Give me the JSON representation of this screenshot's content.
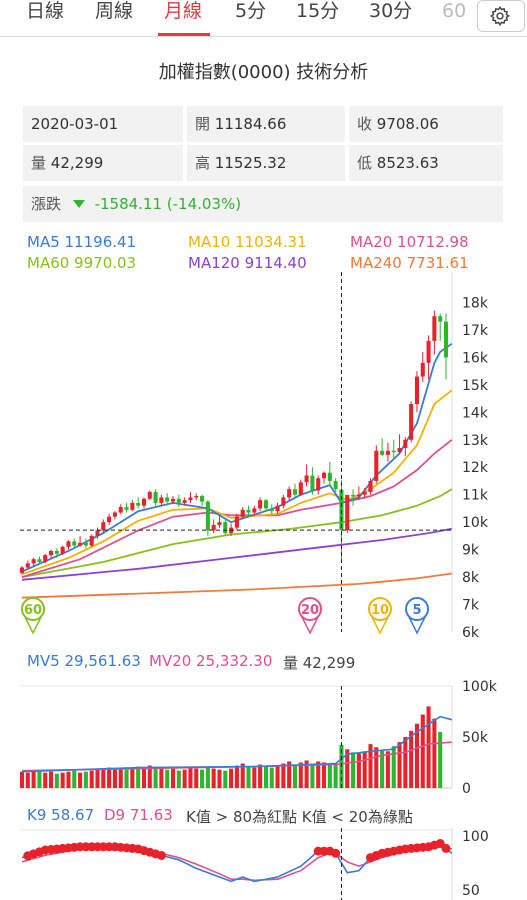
{
  "tabs": [
    {
      "label": "日線",
      "active": false
    },
    {
      "label": "周線",
      "active": false
    },
    {
      "label": "月線",
      "active": true
    },
    {
      "label": "5分",
      "active": false
    },
    {
      "label": "15分",
      "active": false
    },
    {
      "label": "30分",
      "active": false
    },
    {
      "label": "60",
      "active": false
    }
  ],
  "settings_icon": "gear-icon",
  "title": "加權指數(0000) 技術分析",
  "info": {
    "date": "2020-03-01",
    "open_label": "開",
    "open": "11184.66",
    "close_label": "收",
    "close": "9708.06",
    "volume_label": "量",
    "volume": "42,299",
    "high_label": "高",
    "high": "11525.32",
    "low_label": "低",
    "low": "8523.63",
    "change_label": "漲跌",
    "change": "-1584.11 (-14.03%)",
    "change_icon": "triangle-down-icon",
    "change_color": "#2db52d"
  },
  "ma_legend": {
    "ma5": "MA5 11196.41",
    "ma10": "MA10 11034.31",
    "ma20": "MA20 10712.98",
    "ma60": "MA60 9970.03",
    "ma120": "MA120 9114.40",
    "ma240": "MA240 7731.61"
  },
  "colors": {
    "ma5": "#3a7bd5",
    "ma10": "#f0b400",
    "ma20": "#e0508c",
    "ma60": "#86c11a",
    "ma120": "#8a42d6",
    "ma240": "#f07a3c",
    "up": "#e8212a",
    "down": "#2db52d"
  },
  "price_axis": [
    "18k",
    "17k",
    "16k",
    "15k",
    "14k",
    "13k",
    "12k",
    "11k",
    "10k",
    "9k",
    "8k",
    "7k",
    "6k"
  ],
  "markers": [
    {
      "label": "60",
      "color": "#86c11a"
    },
    {
      "label": "20",
      "color": "#e0508c"
    },
    {
      "label": "10",
      "color": "#f0b400"
    },
    {
      "label": "5",
      "color": "#3a7bd5"
    }
  ],
  "mv_legend": {
    "mv5": "MV5 29,561.63",
    "mv20": "MV20 25,332.30",
    "vol": "量 42,299"
  },
  "volume_axis": [
    "100k",
    "50k",
    "0"
  ],
  "kd_legend": {
    "k": "K9 58.67",
    "d": "D9 71.63",
    "note": "K值 > 80為紅點 K值 < 20為綠點"
  },
  "kd_axis": [
    "100",
    "50"
  ],
  "chart_data": {
    "type": "candlestick",
    "y_range_price": [
      6000,
      19000
    ],
    "candles": [
      {
        "o": 8150,
        "c": 8350,
        "h": 8400,
        "l": 8100
      },
      {
        "o": 8350,
        "c": 8500,
        "h": 8600,
        "l": 8300
      },
      {
        "o": 8500,
        "c": 8650,
        "h": 8700,
        "l": 8400
      },
      {
        "o": 8650,
        "c": 8550,
        "h": 8750,
        "l": 8450
      },
      {
        "o": 8550,
        "c": 8800,
        "h": 8850,
        "l": 8500
      },
      {
        "o": 8800,
        "c": 8950,
        "h": 9000,
        "l": 8700
      },
      {
        "o": 8950,
        "c": 8850,
        "h": 9050,
        "l": 8700
      },
      {
        "o": 8850,
        "c": 9100,
        "h": 9150,
        "l": 8800
      },
      {
        "o": 9100,
        "c": 9300,
        "h": 9350,
        "l": 9000
      },
      {
        "o": 9300,
        "c": 9150,
        "h": 9400,
        "l": 9050
      },
      {
        "o": 9150,
        "c": 9250,
        "h": 9500,
        "l": 9100
      },
      {
        "o": 9250,
        "c": 9150,
        "h": 9400,
        "l": 9050
      },
      {
        "o": 9150,
        "c": 9500,
        "h": 9550,
        "l": 9100
      },
      {
        "o": 9500,
        "c": 9700,
        "h": 9800,
        "l": 9400
      },
      {
        "o": 9700,
        "c": 10000,
        "h": 10100,
        "l": 9600
      },
      {
        "o": 10000,
        "c": 10200,
        "h": 10300,
        "l": 9900
      },
      {
        "o": 10200,
        "c": 10350,
        "h": 10400,
        "l": 10100
      },
      {
        "o": 10350,
        "c": 10550,
        "h": 10650,
        "l": 10300
      },
      {
        "o": 10550,
        "c": 10450,
        "h": 10700,
        "l": 10350
      },
      {
        "o": 10450,
        "c": 10700,
        "h": 10800,
        "l": 10400
      },
      {
        "o": 10700,
        "c": 10600,
        "h": 10900,
        "l": 10500
      },
      {
        "o": 10600,
        "c": 10850,
        "h": 10900,
        "l": 10500
      },
      {
        "o": 10850,
        "c": 11100,
        "h": 11150,
        "l": 10800
      },
      {
        "o": 11100,
        "c": 10700,
        "h": 11200,
        "l": 10600
      },
      {
        "o": 10700,
        "c": 10900,
        "h": 11000,
        "l": 10600
      },
      {
        "o": 10900,
        "c": 10750,
        "h": 11050,
        "l": 10600
      },
      {
        "o": 10750,
        "c": 10850,
        "h": 10950,
        "l": 10650
      },
      {
        "o": 10850,
        "c": 10700,
        "h": 11000,
        "l": 10550
      },
      {
        "o": 10700,
        "c": 10800,
        "h": 10900,
        "l": 10600
      },
      {
        "o": 10800,
        "c": 10900,
        "h": 11100,
        "l": 10700
      },
      {
        "o": 10900,
        "c": 10950,
        "h": 11050,
        "l": 10800
      },
      {
        "o": 10950,
        "c": 10750,
        "h": 11000,
        "l": 10600
      },
      {
        "o": 10750,
        "c": 9700,
        "h": 10800,
        "l": 9500
      },
      {
        "o": 9700,
        "c": 9900,
        "h": 10100,
        "l": 9600
      },
      {
        "o": 9900,
        "c": 10000,
        "h": 10250,
        "l": 9800
      },
      {
        "o": 10000,
        "c": 9600,
        "h": 10100,
        "l": 9500
      },
      {
        "o": 9600,
        "c": 9800,
        "h": 9950,
        "l": 9500
      },
      {
        "o": 9800,
        "c": 10200,
        "h": 10300,
        "l": 9700
      },
      {
        "o": 10200,
        "c": 10450,
        "h": 10550,
        "l": 10100
      },
      {
        "o": 10450,
        "c": 10350,
        "h": 10600,
        "l": 10200
      },
      {
        "o": 10350,
        "c": 10500,
        "h": 10600,
        "l": 10250
      },
      {
        "o": 10500,
        "c": 10800,
        "h": 10900,
        "l": 10400
      },
      {
        "o": 10800,
        "c": 10500,
        "h": 10850,
        "l": 10400
      },
      {
        "o": 10500,
        "c": 10400,
        "h": 10650,
        "l": 10300
      },
      {
        "o": 10400,
        "c": 10600,
        "h": 10700,
        "l": 10300
      },
      {
        "o": 10600,
        "c": 10900,
        "h": 11000,
        "l": 10500
      },
      {
        "o": 10900,
        "c": 11200,
        "h": 11300,
        "l": 10800
      },
      {
        "o": 11200,
        "c": 11000,
        "h": 11400,
        "l": 10900
      },
      {
        "o": 11000,
        "c": 11450,
        "h": 11550,
        "l": 10950
      },
      {
        "o": 11450,
        "c": 11700,
        "h": 12100,
        "l": 11300
      },
      {
        "o": 11700,
        "c": 11150,
        "h": 12000,
        "l": 11000
      },
      {
        "o": 11150,
        "c": 11600,
        "h": 11700,
        "l": 11000
      },
      {
        "o": 11600,
        "c": 11800,
        "h": 11850,
        "l": 11400
      },
      {
        "o": 11800,
        "c": 11500,
        "h": 12200,
        "l": 11300
      },
      {
        "o": 11500,
        "c": 11200,
        "h": 11600,
        "l": 11100
      },
      {
        "o": 11184,
        "c": 9708,
        "h": 11525,
        "l": 8524
      },
      {
        "o": 9708,
        "c": 10990,
        "h": 11000,
        "l": 9600
      },
      {
        "o": 10990,
        "c": 10940,
        "h": 11200,
        "l": 10600
      },
      {
        "o": 10940,
        "c": 11000,
        "h": 11300,
        "l": 10800
      },
      {
        "o": 11000,
        "c": 11100,
        "h": 11250,
        "l": 10850
      },
      {
        "o": 11100,
        "c": 11500,
        "h": 11600,
        "l": 11000
      },
      {
        "o": 11500,
        "c": 12600,
        "h": 12800,
        "l": 11400
      },
      {
        "o": 12600,
        "c": 12450,
        "h": 13050,
        "l": 12400
      },
      {
        "o": 12450,
        "c": 12600,
        "h": 12900,
        "l": 12200
      },
      {
        "o": 12600,
        "c": 12550,
        "h": 13000,
        "l": 12300
      },
      {
        "o": 12550,
        "c": 12700,
        "h": 13200,
        "l": 12500
      },
      {
        "o": 12700,
        "c": 13000,
        "h": 13100,
        "l": 12400
      },
      {
        "o": 13000,
        "c": 14300,
        "h": 14400,
        "l": 12900
      },
      {
        "o": 14300,
        "c": 15300,
        "h": 15500,
        "l": 14000
      },
      {
        "o": 15300,
        "c": 15800,
        "h": 16200,
        "l": 15100
      },
      {
        "o": 15800,
        "c": 16600,
        "h": 16800,
        "l": 15200
      },
      {
        "o": 16600,
        "c": 17500,
        "h": 17700,
        "l": 16100
      },
      {
        "o": 17500,
        "c": 17300,
        "h": 17600,
        "l": 16600
      },
      {
        "o": 17300,
        "c": 16000,
        "h": 17600,
        "l": 15200
      }
    ],
    "ma_lines": {
      "ma5": [
        [
          0,
          8200
        ],
        [
          8,
          8950
        ],
        [
          14,
          9600
        ],
        [
          20,
          10400
        ],
        [
          26,
          10700
        ],
        [
          32,
          10500
        ],
        [
          36,
          10000
        ],
        [
          44,
          10550
        ],
        [
          48,
          11000
        ],
        [
          53,
          11350
        ],
        [
          55,
          10700
        ],
        [
          58,
          10900
        ],
        [
          61,
          11700
        ],
        [
          65,
          12500
        ],
        [
          68,
          13600
        ],
        [
          71,
          15800
        ],
        [
          72,
          16200
        ],
        [
          74,
          16500
        ]
      ],
      "ma10": [
        [
          0,
          8100
        ],
        [
          8,
          8700
        ],
        [
          14,
          9300
        ],
        [
          20,
          10050
        ],
        [
          26,
          10450
        ],
        [
          32,
          10500
        ],
        [
          36,
          10150
        ],
        [
          44,
          10300
        ],
        [
          48,
          10700
        ],
        [
          53,
          11050
        ],
        [
          56,
          10800
        ],
        [
          60,
          11200
        ],
        [
          64,
          11800
        ],
        [
          68,
          12800
        ],
        [
          71,
          14300
        ],
        [
          74,
          14800
        ]
      ],
      "ma20": [
        [
          0,
          8000
        ],
        [
          10,
          8650
        ],
        [
          20,
          9700
        ],
        [
          26,
          10200
        ],
        [
          32,
          10350
        ],
        [
          36,
          10250
        ],
        [
          44,
          10250
        ],
        [
          48,
          10450
        ],
        [
          55,
          10700
        ],
        [
          60,
          10950
        ],
        [
          64,
          11300
        ],
        [
          68,
          11900
        ],
        [
          71,
          12500
        ],
        [
          74,
          13000
        ]
      ],
      "ma60": [
        [
          0,
          8000
        ],
        [
          14,
          8550
        ],
        [
          26,
          9200
        ],
        [
          36,
          9550
        ],
        [
          46,
          9750
        ],
        [
          55,
          10000
        ],
        [
          62,
          10250
        ],
        [
          68,
          10600
        ],
        [
          72,
          10950
        ],
        [
          74,
          11200
        ]
      ],
      "ma120": [
        [
          0,
          7900
        ],
        [
          20,
          8300
        ],
        [
          36,
          8700
        ],
        [
          50,
          9050
        ],
        [
          62,
          9350
        ],
        [
          70,
          9600
        ],
        [
          74,
          9760
        ]
      ],
      "ma240": [
        [
          0,
          7250
        ],
        [
          20,
          7400
        ],
        [
          40,
          7550
        ],
        [
          58,
          7750
        ],
        [
          68,
          7950
        ],
        [
          74,
          8130
        ]
      ]
    },
    "volume_range": [
      0,
      100000
    ],
    "volumes": [
      16000,
      15000,
      17000,
      16000,
      15000,
      16000,
      14000,
      15000,
      16000,
      17000,
      15000,
      16000,
      17000,
      18000,
      19000,
      20000,
      19000,
      20000,
      18000,
      19000,
      21000,
      20000,
      22000,
      19000,
      20000,
      18000,
      19000,
      17000,
      18000,
      20000,
      19000,
      18000,
      20000,
      19000,
      18000,
      17000,
      19000,
      22000,
      24000,
      21000,
      20000,
      23000,
      21000,
      20000,
      22000,
      24000,
      26000,
      23000,
      25000,
      27000,
      24000,
      26000,
      25000,
      23000,
      24000,
      42299,
      38000,
      35000,
      34000,
      36000,
      43000,
      40000,
      37000,
      36000,
      41000,
      45000,
      50000,
      56000,
      63000,
      72000,
      80000,
      68000,
      55000
    ],
    "mv5": [
      [
        0,
        16000
      ],
      [
        20,
        20000
      ],
      [
        40,
        21000
      ],
      [
        54,
        24000
      ],
      [
        56,
        33000
      ],
      [
        60,
        36000
      ],
      [
        64,
        38000
      ],
      [
        68,
        55000
      ],
      [
        72,
        70000
      ],
      [
        74,
        67000
      ]
    ],
    "mv20": [
      [
        0,
        17000
      ],
      [
        20,
        19000
      ],
      [
        40,
        21000
      ],
      [
        54,
        23000
      ],
      [
        58,
        26000
      ],
      [
        62,
        32000
      ],
      [
        66,
        35000
      ],
      [
        70,
        43000
      ],
      [
        74,
        45000
      ]
    ],
    "k_range": [
      50,
      100
    ],
    "k_line": [
      [
        0,
        80
      ],
      [
        4,
        87
      ],
      [
        10,
        90
      ],
      [
        16,
        90
      ],
      [
        20,
        88
      ],
      [
        24,
        82
      ],
      [
        27,
        78
      ],
      [
        30,
        70
      ],
      [
        34,
        62
      ],
      [
        36,
        58
      ],
      [
        38,
        62
      ],
      [
        40,
        58
      ],
      [
        44,
        62
      ],
      [
        48,
        72
      ],
      [
        51,
        86
      ],
      [
        53,
        86
      ],
      [
        54,
        84
      ],
      [
        56,
        66
      ],
      [
        58,
        68
      ],
      [
        60,
        80
      ],
      [
        62,
        84
      ],
      [
        66,
        88
      ],
      [
        70,
        90
      ],
      [
        72,
        93
      ],
      [
        74,
        84
      ]
    ],
    "d_line": [
      [
        0,
        76
      ],
      [
        4,
        82
      ],
      [
        10,
        88
      ],
      [
        16,
        89
      ],
      [
        20,
        88
      ],
      [
        24,
        84
      ],
      [
        27,
        80
      ],
      [
        30,
        74
      ],
      [
        34,
        65
      ],
      [
        36,
        60
      ],
      [
        38,
        60
      ],
      [
        40,
        59
      ],
      [
        44,
        60
      ],
      [
        48,
        68
      ],
      [
        51,
        80
      ],
      [
        53,
        84
      ],
      [
        54,
        84
      ],
      [
        56,
        76
      ],
      [
        58,
        72
      ],
      [
        60,
        76
      ],
      [
        62,
        80
      ],
      [
        66,
        86
      ],
      [
        70,
        88
      ],
      [
        72,
        90
      ],
      [
        74,
        88
      ]
    ],
    "k_red_dots": [
      1,
      2,
      3,
      4,
      5,
      6,
      7,
      8,
      9,
      10,
      11,
      12,
      13,
      14,
      15,
      16,
      17,
      18,
      19,
      20,
      21,
      22,
      23,
      24,
      51,
      52,
      53,
      54,
      60,
      61,
      62,
      63,
      64,
      65,
      66,
      67,
      68,
      69,
      70,
      71,
      72,
      73
    ]
  }
}
